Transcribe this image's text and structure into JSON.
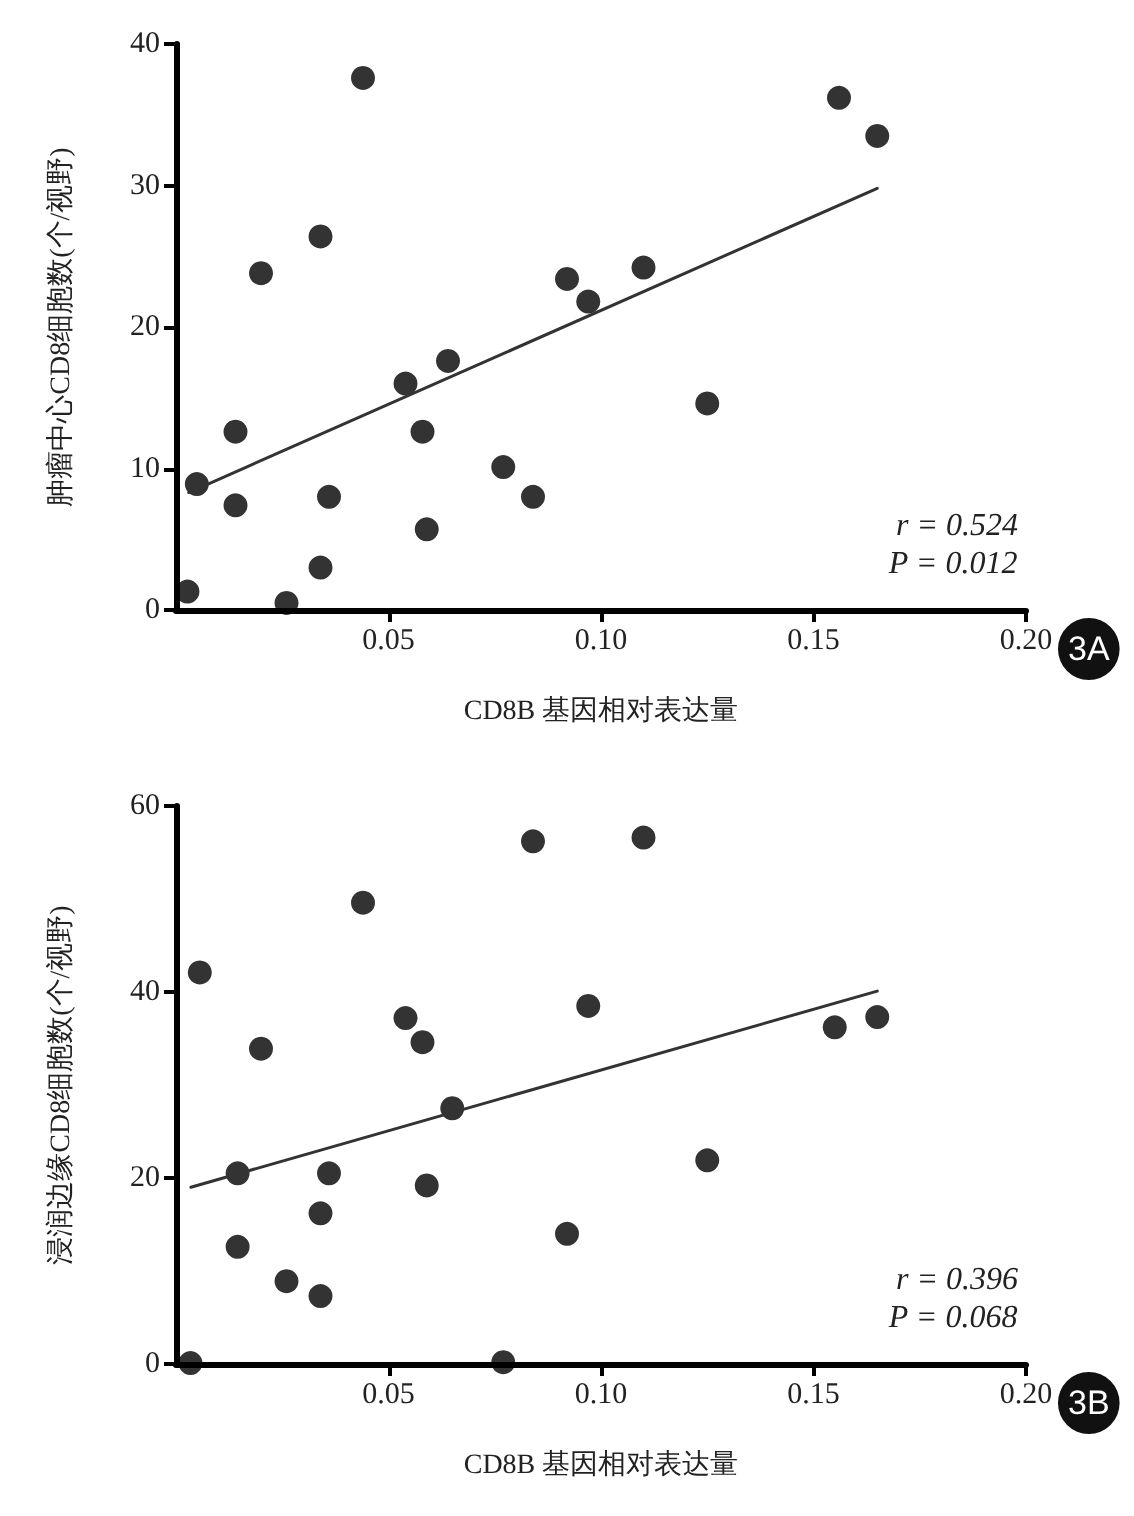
{
  "chart_data": [
    {
      "type": "scatter",
      "title": "3A",
      "xlabel": "CD8B 基因相对表达量",
      "ylabel": "肿瘤中心CD8细胞数(个/视野)",
      "xlim": [
        0,
        0.2
      ],
      "ylim": [
        0,
        40
      ],
      "xticks": [
        {
          "value": 0.05,
          "label": "0.05"
        },
        {
          "value": 0.1,
          "label": "0.10"
        },
        {
          "value": 0.15,
          "label": "0.15"
        },
        {
          "value": 0.2,
          "label": "0.20"
        }
      ],
      "yticks": [
        0,
        10,
        20,
        30,
        40
      ],
      "grid": false,
      "marker": "circle",
      "annotations": [
        "r = 0.524",
        "P = 0.012"
      ],
      "series": [
        {
          "type": "scatter",
          "color": "#000000",
          "x": [
            0.0027,
            0.0049,
            0.014,
            0.014,
            0.02,
            0.026,
            0.034,
            0.034,
            0.036,
            0.044,
            0.054,
            0.058,
            0.059,
            0.064,
            0.077,
            0.084,
            0.092,
            0.097,
            0.11,
            0.125,
            0.156,
            0.165
          ],
          "values": [
            1.3,
            8.9,
            12.6,
            7.4,
            23.8,
            0.5,
            26.4,
            3.0,
            8.0,
            37.6,
            16.0,
            12.6,
            5.7,
            17.6,
            10.1,
            8.0,
            23.4,
            21.8,
            24.2,
            14.6,
            36.2,
            33.5
          ]
        },
        {
          "type": "line",
          "color": "#333333",
          "marker": "none",
          "line_style": "solid",
          "x": [
            0.003,
            0.165
          ],
          "values": [
            8.3,
            29.8
          ]
        }
      ]
    },
    {
      "type": "scatter",
      "title": "3B",
      "xlabel": "CD8B 基因相对表达量",
      "ylabel": "浸润边缘CD8细胞数(个/视野)",
      "xlim": [
        0,
        0.2
      ],
      "ylim": [
        0,
        60
      ],
      "xticks": [
        {
          "value": 0.05,
          "label": "0.05"
        },
        {
          "value": 0.1,
          "label": "0.10"
        },
        {
          "value": 0.15,
          "label": "0.15"
        },
        {
          "value": 0.2,
          "label": "0.20"
        }
      ],
      "yticks": [
        0,
        20,
        40,
        60
      ],
      "grid": false,
      "marker": "circle",
      "annotations": [
        "r = 0.396",
        "P = 0.068"
      ],
      "series": [
        {
          "type": "scatter",
          "color": "#000000",
          "x": [
            0.0034,
            0.0056,
            0.0145,
            0.0145,
            0.02,
            0.026,
            0.034,
            0.034,
            0.036,
            0.044,
            0.054,
            0.058,
            0.059,
            0.065,
            0.077,
            0.084,
            0.092,
            0.097,
            0.11,
            0.125,
            0.155,
            0.165
          ],
          "values": [
            0.1,
            42.1,
            20.5,
            12.6,
            33.9,
            8.9,
            7.3,
            16.2,
            20.5,
            49.6,
            37.2,
            34.6,
            19.2,
            27.5,
            0.2,
            56.2,
            14.0,
            38.5,
            56.6,
            21.9,
            36.2,
            37.3
          ]
        },
        {
          "type": "line",
          "color": "#333333",
          "marker": "none",
          "line_style": "solid",
          "x": [
            0.0035,
            0.165
          ],
          "values": [
            19.0,
            40.1
          ]
        }
      ]
    }
  ]
}
